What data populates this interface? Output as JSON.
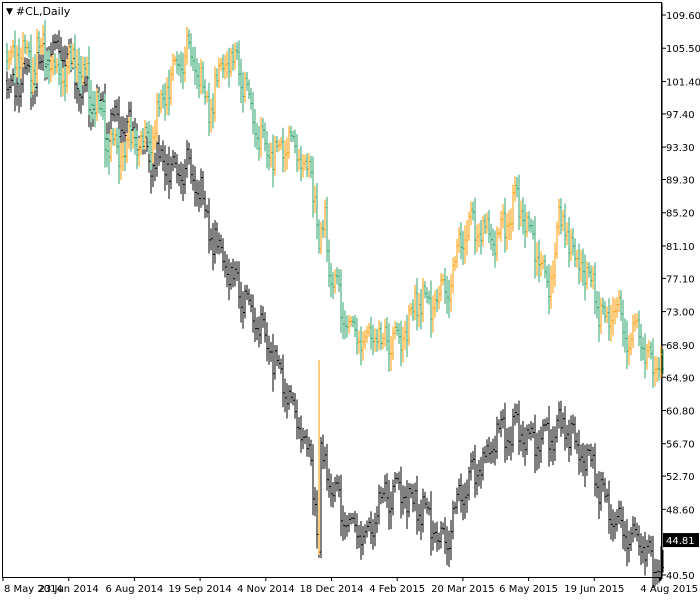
{
  "window": {
    "title": "#CL,Daily"
  },
  "colors": {
    "background": "#ffffff",
    "axis": "#000000",
    "bull": "#ff9900",
    "bear": "#2aa36b",
    "overlay": "#000000",
    "price_tag_bg": "#000000",
    "price_tag_text": "#ffffff"
  },
  "chart_data": {
    "type": "line",
    "title": "#CL,Daily",
    "y_axis": {
      "position": "right",
      "ticks": [
        "109.60",
        "105.50",
        "101.40",
        "97.40",
        "93.30",
        "89.30",
        "85.20",
        "81.10",
        "77.10",
        "73.00",
        "68.90",
        "64.90",
        "60.80",
        "56.70",
        "52.70",
        "48.60",
        "44.81",
        "40.50"
      ],
      "tick_values": [
        109.6,
        105.5,
        101.4,
        97.4,
        93.3,
        89.3,
        85.2,
        81.1,
        77.1,
        73.0,
        68.9,
        64.9,
        60.8,
        56.7,
        52.7,
        48.6,
        40.5
      ],
      "range": [
        40.5,
        109.6
      ]
    },
    "x_axis": {
      "ticks": [
        "8 May 2014",
        "23 Jun 2014",
        "6 Aug 2014",
        "19 Sep 2014",
        "4 Nov 2014",
        "18 Dec 2014",
        "4 Feb 2015",
        "20 Mar 2015",
        "6 May 2015",
        "19 Jun 2015",
        "4 Aug 2015"
      ]
    },
    "current_price": "44.81",
    "grid": false,
    "series": [
      {
        "style": "ohlc-bars",
        "x": [
          0,
          12,
          24,
          34,
          40,
          48,
          58,
          70,
          82,
          92,
          100,
          110,
          124,
          134,
          146,
          152,
          160,
          170,
          180,
          188,
          194,
          202,
          210,
          220,
          232,
          244,
          252,
          262,
          272,
          282,
          290,
          298,
          304,
          309,
          312,
          314,
          318,
          322,
          330,
          340,
          350,
          358,
          366,
          374,
          382,
          392,
          402,
          412,
          422,
          432,
          440,
          446,
          452,
          460,
          470,
          480,
          490,
          500,
          508,
          516,
          524,
          532,
          540,
          546,
          552,
          560,
          566,
          574,
          582,
          588,
          594,
          600,
          606,
          612,
          618,
          624,
          630,
          636,
          642,
          648,
          652,
          656
        ],
        "values": [
          105.0,
          106.0,
          104.5,
          106.5,
          105.5,
          104.0,
          103.5,
          106.0,
          102.5,
          98.0,
          95.5,
          94.0,
          95.0,
          94.5,
          96.0,
          99.0,
          102.0,
          104.5,
          106.0,
          105.0,
          102.0,
          98.5,
          102.0,
          105.5,
          104.0,
          99.0,
          95.0,
          94.0,
          93.5,
          95.5,
          93.5,
          92.0,
          90.0,
          88.5,
          81.0,
          83.0,
          85.0,
          79.0,
          76.5,
          72.5,
          71.0,
          70.5,
          71.5,
          69.5,
          71.0,
          70.5,
          73.0,
          75.5,
          75.0,
          76.0,
          77.5,
          78.0,
          82.0,
          85.0,
          84.0,
          84.0,
          82.0,
          85.5,
          87.5,
          86.5,
          83.0,
          82.0,
          77.0,
          80.0,
          85.0,
          84.0,
          80.0,
          81.0,
          78.0,
          76.0,
          73.0,
          72.5,
          75.5,
          74.0,
          72.0,
          70.0,
          71.5,
          70.0,
          68.0,
          68.0,
          67.5,
          66.0
        ]
      },
      {
        "style": "black-bars",
        "x": [
          0,
          12,
          24,
          34,
          40,
          48,
          58,
          70,
          82,
          92,
          100,
          110,
          124,
          134,
          146,
          152,
          160,
          170,
          180,
          188,
          194,
          202,
          210,
          220,
          232,
          244,
          252,
          262,
          272,
          282,
          290,
          298,
          304,
          309,
          312,
          314,
          318,
          322,
          330,
          340,
          350,
          358,
          366,
          374,
          382,
          392,
          402,
          412,
          422,
          432,
          440,
          446,
          452,
          460,
          470,
          480,
          490,
          500,
          508,
          516,
          524,
          532,
          540,
          546,
          552,
          560,
          566,
          574,
          582,
          588,
          594,
          600,
          606,
          612,
          618,
          624,
          630,
          636,
          642,
          648,
          652,
          656
        ],
        "values": [
          101.5,
          102.5,
          103.0,
          104.5,
          106.0,
          107.0,
          106.0,
          103.0,
          101.0,
          99.0,
          97.0,
          98.0,
          96.5,
          94.5,
          92.5,
          93.0,
          92.5,
          91.0,
          92.0,
          90.0,
          88.5,
          84.0,
          81.5,
          79.5,
          76.5,
          74.0,
          72.0,
          70.0,
          66.5,
          63.5,
          60.5,
          58.0,
          54.5,
          50.0,
          43.5,
          56.5,
          54.5,
          53.0,
          51.0,
          48.0,
          47.0,
          46.5,
          47.5,
          50.5,
          51.5,
          52.5,
          51.0,
          49.5,
          49.0,
          45.5,
          46.5,
          48.0,
          51.0,
          53.0,
          54.5,
          56.0,
          58.5,
          59.0,
          59.5,
          59.0,
          58.0,
          59.0,
          59.5,
          58.5,
          60.0,
          59.0,
          58.0,
          57.0,
          56.0,
          53.5,
          51.5,
          50.0,
          49.0,
          48.0,
          47.5,
          46.0,
          45.0,
          45.5,
          44.0,
          43.0,
          42.5,
          41.5
        ]
      }
    ]
  }
}
